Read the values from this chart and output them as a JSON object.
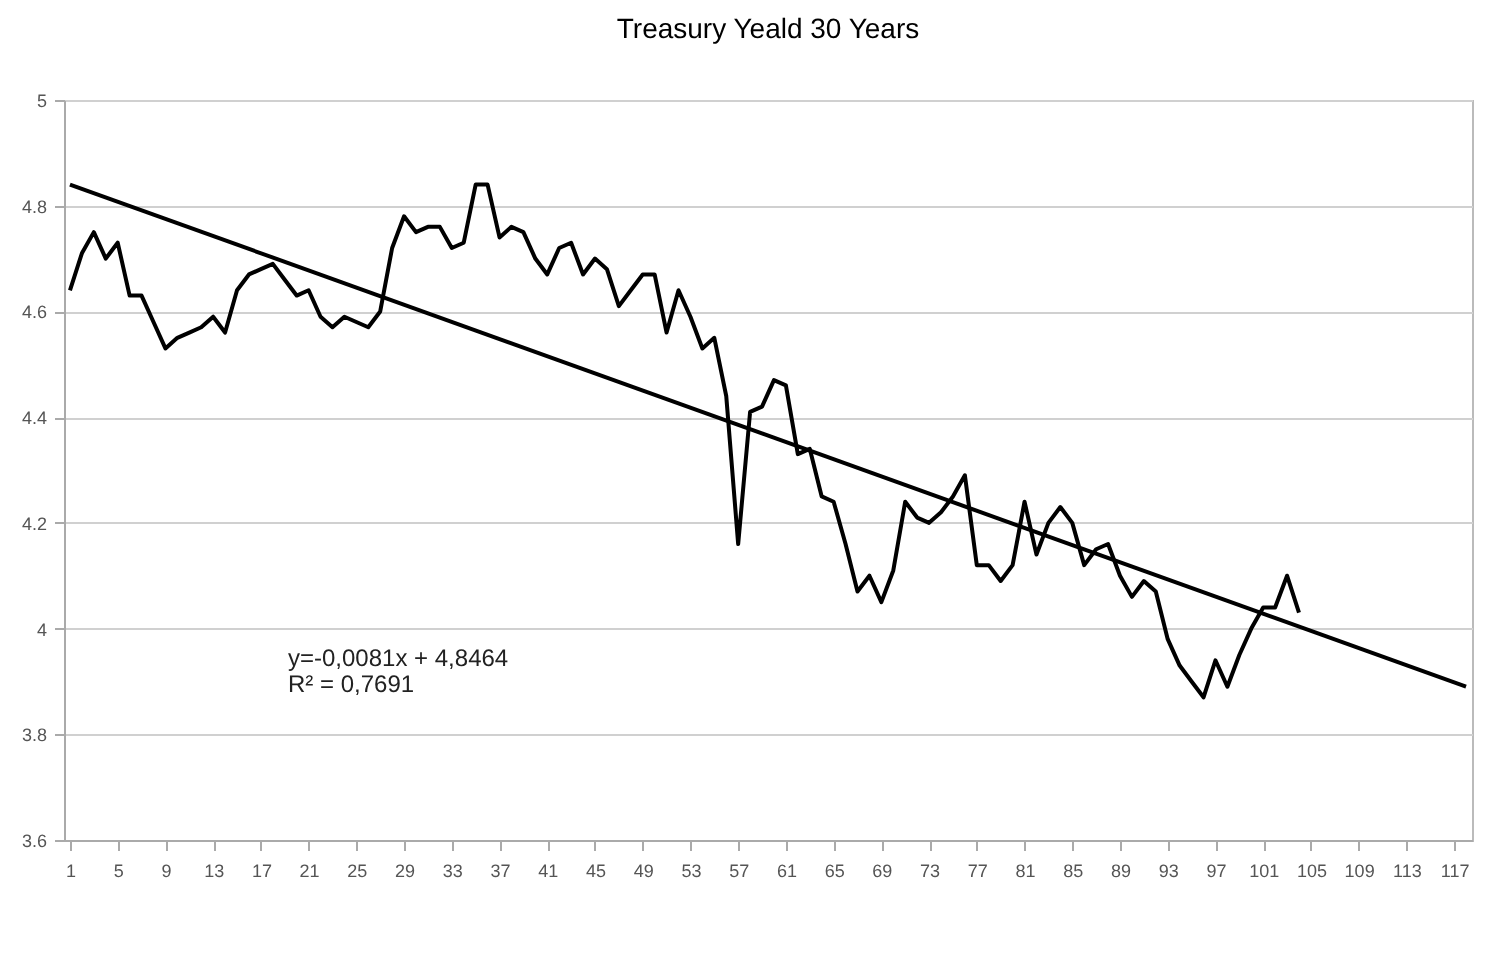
{
  "chart_data": {
    "type": "line",
    "title": "Treasury Yeald 30 Years",
    "series": [
      {
        "color": "#000000",
        "x": [
          1,
          2,
          3,
          4,
          5,
          6,
          7,
          8,
          9,
          10,
          11,
          12,
          13,
          14,
          15,
          16,
          17,
          18,
          19,
          20,
          21,
          22,
          23,
          24,
          25,
          26,
          27,
          28,
          29,
          30,
          31,
          32,
          33,
          34,
          35,
          36,
          37,
          38,
          39,
          40,
          41,
          42,
          43,
          44,
          45,
          46,
          47,
          48,
          49,
          50,
          51,
          52,
          53,
          54,
          55,
          56,
          57,
          58,
          59,
          60,
          61,
          62,
          63,
          64,
          65,
          66,
          67,
          68,
          69,
          70,
          71,
          72,
          73,
          74,
          75,
          76,
          77,
          78,
          79,
          80,
          81,
          82,
          83,
          84,
          85,
          86,
          87,
          88,
          89,
          90,
          91,
          92,
          93,
          94,
          95,
          96,
          97,
          98,
          99,
          100,
          101,
          102,
          103,
          104
        ],
        "values": [
          4.64,
          4.71,
          4.75,
          4.7,
          4.73,
          4.63,
          4.63,
          4.58,
          4.53,
          4.55,
          4.56,
          4.57,
          4.59,
          4.56,
          4.64,
          4.67,
          4.68,
          4.69,
          4.66,
          4.63,
          4.64,
          4.59,
          4.57,
          4.59,
          4.58,
          4.57,
          4.6,
          4.72,
          4.78,
          4.75,
          4.76,
          4.76,
          4.72,
          4.73,
          4.84,
          4.84,
          4.74,
          4.76,
          4.75,
          4.7,
          4.67,
          4.72,
          4.73,
          4.67,
          4.7,
          4.68,
          4.61,
          4.64,
          4.67,
          4.67,
          4.56,
          4.64,
          4.59,
          4.53,
          4.55,
          4.44,
          4.16,
          4.41,
          4.42,
          4.47,
          4.46,
          4.33,
          4.34,
          4.25,
          4.24,
          4.16,
          4.07,
          4.1,
          4.05,
          4.11,
          4.24,
          4.21,
          4.2,
          4.22,
          4.25,
          4.29,
          4.12,
          4.12,
          4.09,
          4.12,
          4.24,
          4.14,
          4.2,
          4.23,
          4.2,
          4.12,
          4.15,
          4.16,
          4.1,
          4.06,
          4.09,
          4.07,
          3.98,
          3.93,
          3.9,
          3.87,
          3.94,
          3.89,
          3.95,
          4.0,
          4.04,
          4.04,
          4.1,
          4.03
        ]
      },
      {
        "type": "line",
        "color": "#000000",
        "x": [
          1,
          118
        ],
        "values": [
          4.84,
          3.89
        ]
      }
    ],
    "xlim": [
      0.5,
      118.5
    ],
    "xticks": [
      1,
      5,
      9,
      13,
      17,
      21,
      25,
      29,
      33,
      37,
      41,
      45,
      49,
      53,
      57,
      61,
      65,
      69,
      73,
      77,
      81,
      85,
      89,
      93,
      97,
      101,
      105,
      109,
      113,
      117
    ],
    "ylim": [
      3.6,
      5
    ],
    "yticks": [
      3.6,
      3.8,
      4,
      4.2,
      4.4,
      4.6,
      4.8,
      5
    ],
    "grid": "y",
    "line_style": "solid",
    "marker": "none",
    "annotations": [
      "y=-0,0081x + 4,8464",
      "R² = 0,7691"
    ]
  }
}
